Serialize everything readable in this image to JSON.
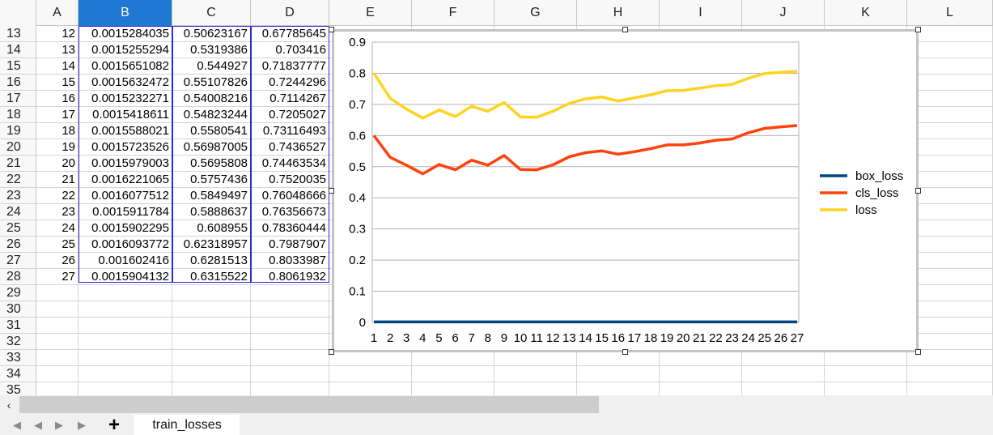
{
  "sheet": {
    "columns": [
      "A",
      "B",
      "C",
      "D",
      "E",
      "F",
      "G",
      "H",
      "I",
      "J",
      "K",
      "L"
    ],
    "selected_column": "B",
    "rows": [
      {
        "n": "13",
        "a": "12",
        "b": "0.0015284035",
        "c": "0.50623167",
        "d": "0.67785645"
      },
      {
        "n": "14",
        "a": "13",
        "b": "0.0015255294",
        "c": "0.5319386",
        "d": "0.703416"
      },
      {
        "n": "15",
        "a": "14",
        "b": "0.0015651082",
        "c": "0.544927",
        "d": "0.71837777"
      },
      {
        "n": "16",
        "a": "15",
        "b": "0.0015632472",
        "c": "0.55107826",
        "d": "0.7244296"
      },
      {
        "n": "17",
        "a": "16",
        "b": "0.0015232271",
        "c": "0.54008216",
        "d": "0.7114267"
      },
      {
        "n": "18",
        "a": "17",
        "b": "0.0015418611",
        "c": "0.54823244",
        "d": "0.7205027"
      },
      {
        "n": "19",
        "a": "18",
        "b": "0.0015588021",
        "c": "0.5580541",
        "d": "0.73116493"
      },
      {
        "n": "20",
        "a": "19",
        "b": "0.0015723526",
        "c": "0.56987005",
        "d": "0.7436527"
      },
      {
        "n": "21",
        "a": "20",
        "b": "0.0015979003",
        "c": "0.5695808",
        "d": "0.74463534"
      },
      {
        "n": "22",
        "a": "21",
        "b": "0.0016221065",
        "c": "0.5757436",
        "d": "0.7520035"
      },
      {
        "n": "23",
        "a": "22",
        "b": "0.0016077512",
        "c": "0.5849497",
        "d": "0.76048666"
      },
      {
        "n": "24",
        "a": "23",
        "b": "0.0015911784",
        "c": "0.5888637",
        "d": "0.76356673"
      },
      {
        "n": "25",
        "a": "24",
        "b": "0.0015902295",
        "c": "0.608955",
        "d": "0.78360444"
      },
      {
        "n": "26",
        "a": "25",
        "b": "0.0016093772",
        "c": "0.62318957",
        "d": "0.7987907"
      },
      {
        "n": "27",
        "a": "26",
        "b": "0.001602416",
        "c": "0.6281513",
        "d": "0.8033987"
      },
      {
        "n": "28",
        "a": "27",
        "b": "0.0015904132",
        "c": "0.6315522",
        "d": "0.8061932"
      },
      {
        "n": "29",
        "a": "",
        "b": "",
        "c": "",
        "d": ""
      },
      {
        "n": "30",
        "a": "",
        "b": "",
        "c": "",
        "d": ""
      },
      {
        "n": "31",
        "a": "",
        "b": "",
        "c": "",
        "d": ""
      },
      {
        "n": "32",
        "a": "",
        "b": "",
        "c": "",
        "d": ""
      },
      {
        "n": "33",
        "a": "",
        "b": "",
        "c": "",
        "d": ""
      },
      {
        "n": "34",
        "a": "",
        "b": "",
        "c": "",
        "d": ""
      },
      {
        "n": "35",
        "a": "",
        "b": "",
        "c": "",
        "d": ""
      }
    ]
  },
  "tabs": {
    "active": "train_losses"
  },
  "icons": {
    "scroll_left": "chevron-left-icon",
    "first": "first-sheet-icon",
    "prev": "prev-sheet-icon",
    "next": "next-sheet-icon",
    "last": "last-sheet-icon",
    "add": "plus-icon"
  },
  "chart_data": {
    "type": "line",
    "x": [
      1,
      2,
      3,
      4,
      5,
      6,
      7,
      8,
      9,
      10,
      11,
      12,
      13,
      14,
      15,
      16,
      17,
      18,
      19,
      20,
      21,
      22,
      23,
      24,
      25,
      26,
      27
    ],
    "ylim": [
      0,
      0.9
    ],
    "yticks": [
      "0",
      "0.1",
      "0.2",
      "0.3",
      "0.4",
      "0.5",
      "0.6",
      "0.7",
      "0.8",
      "0.9"
    ],
    "grid": true,
    "legend": "right",
    "series": [
      {
        "name": "box_loss",
        "color": "#004586",
        "values": [
          0.0016,
          0.0016,
          0.0016,
          0.0016,
          0.0016,
          0.0016,
          0.0016,
          0.0016,
          0.0016,
          0.0016,
          0.0016,
          0.0015,
          0.0015,
          0.0016,
          0.0016,
          0.0015,
          0.0015,
          0.0016,
          0.0016,
          0.0016,
          0.0016,
          0.0016,
          0.0016,
          0.0016,
          0.0016,
          0.0016,
          0.0016
        ]
      },
      {
        "name": "cls_loss",
        "color": "#ff420e",
        "values": [
          0.6,
          0.53,
          0.505,
          0.477,
          0.507,
          0.49,
          0.521,
          0.505,
          0.536,
          0.491,
          0.49,
          0.506,
          0.532,
          0.545,
          0.551,
          0.54,
          0.548,
          0.558,
          0.57,
          0.57,
          0.576,
          0.585,
          0.589,
          0.609,
          0.623,
          0.628,
          0.632
        ]
      },
      {
        "name": "loss",
        "color": "#ffd320",
        "values": [
          0.8,
          0.72,
          0.685,
          0.656,
          0.682,
          0.661,
          0.694,
          0.678,
          0.706,
          0.66,
          0.659,
          0.678,
          0.703,
          0.718,
          0.724,
          0.711,
          0.721,
          0.731,
          0.744,
          0.745,
          0.752,
          0.76,
          0.764,
          0.784,
          0.799,
          0.803,
          0.806
        ]
      }
    ]
  }
}
